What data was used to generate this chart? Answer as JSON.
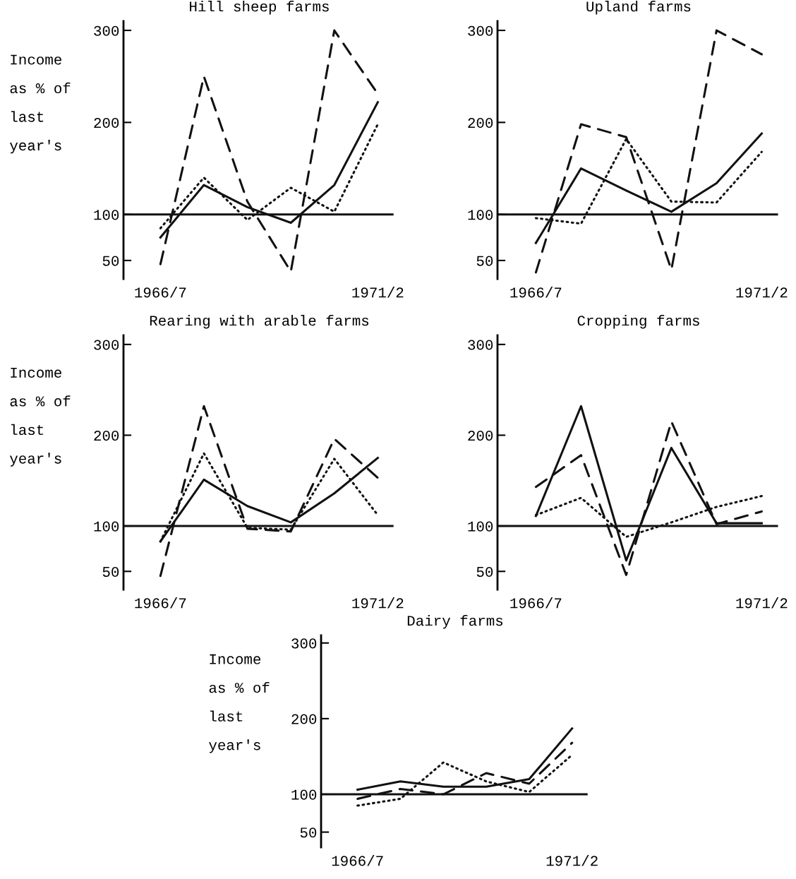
{
  "chart_data": [
    {
      "type": "line",
      "title": "Hill sheep farms",
      "ylabel": "Income\nas % of\nlast\nyear's",
      "categories": [
        "1966/7",
        null,
        null,
        null,
        null,
        "1971/2"
      ],
      "ylim": [
        30,
        310
      ],
      "yticks": [
        50,
        100,
        200,
        300
      ],
      "ref_lines": [
        {
          "axis": "y",
          "value": 100,
          "color": "#111111"
        }
      ],
      "series": [
        {
          "color": "#111111",
          "line_style": "solid",
          "values": [
            75,
            132,
            108,
            91,
            132,
            222
          ]
        },
        {
          "color": "#111111",
          "line_style": "dashed",
          "values": [
            46,
            250,
            114,
            38,
            300,
            231
          ]
        },
        {
          "color": "#111111",
          "line_style": "dotted",
          "values": [
            85,
            140,
            94,
            129,
            103,
            198
          ]
        }
      ]
    },
    {
      "type": "line",
      "title": "Upland farms",
      "categories": [
        "1966/7",
        null,
        null,
        null,
        null,
        "1971/2"
      ],
      "ylim": [
        30,
        310
      ],
      "yticks": [
        50,
        100,
        200,
        300
      ],
      "ref_lines": [
        {
          "axis": "y",
          "value": 100,
          "color": "#111111"
        }
      ],
      "series": [
        {
          "color": "#111111",
          "line_style": "solid",
          "values": [
            69,
            150,
            126,
            103,
            134,
            188
          ]
        },
        {
          "color": "#111111",
          "line_style": "dashed",
          "values": [
            37,
            198,
            184,
            40,
            300,
            274
          ]
        },
        {
          "color": "#111111",
          "line_style": "dotted",
          "values": [
            96,
            90,
            182,
            114,
            113,
            168
          ]
        }
      ]
    },
    {
      "type": "line",
      "title": "Rearing with arable farms",
      "ylabel": "Income\nas % of\nlast\nyear's",
      "categories": [
        "1966/7",
        null,
        null,
        null,
        null,
        "1971/2"
      ],
      "ylim": [
        30,
        310
      ],
      "yticks": [
        50,
        100,
        200,
        300
      ],
      "ref_lines": [
        {
          "axis": "y",
          "value": 100,
          "color": "#111111"
        }
      ],
      "series": [
        {
          "color": "#111111",
          "line_style": "solid",
          "values": [
            83,
            151,
            122,
            104,
            136,
            175
          ]
        },
        {
          "color": "#111111",
          "line_style": "dashed",
          "values": [
            45,
            232,
            97,
            94,
            196,
            153
          ]
        },
        {
          "color": "#111111",
          "line_style": "dotted",
          "values": [
            83,
            180,
            98,
            96,
            174,
            112
          ]
        }
      ]
    },
    {
      "type": "line",
      "title": "Cropping farms",
      "categories": [
        "1966/7",
        null,
        null,
        null,
        null,
        "1971/2"
      ],
      "ylim": [
        30,
        310
      ],
      "yticks": [
        50,
        100,
        200,
        300
      ],
      "ref_lines": [
        {
          "axis": "y",
          "value": 100,
          "color": "#111111"
        }
      ],
      "series": [
        {
          "color": "#111111",
          "line_style": "solid",
          "values": [
            111,
            232,
            62,
            186,
            103,
            103
          ]
        },
        {
          "color": "#111111",
          "line_style": "dashed",
          "values": [
            143,
            178,
            46,
            215,
            102,
            116
          ]
        },
        {
          "color": "#111111",
          "line_style": "dotted",
          "values": [
            112,
            131,
            88,
            104,
            121,
            133
          ]
        }
      ]
    },
    {
      "type": "line",
      "title": "Dairy farms",
      "ylabel": "Income\nas % of\nlast\nyear's",
      "categories": [
        "1966/7",
        null,
        null,
        null,
        null,
        "1971/2"
      ],
      "ylim": [
        30,
        310
      ],
      "yticks": [
        50,
        100,
        200,
        300
      ],
      "ref_lines": [
        {
          "axis": "y",
          "value": 100,
          "color": "#111111"
        }
      ],
      "series": [
        {
          "color": "#111111",
          "line_style": "solid",
          "values": [
            106,
            117,
            110,
            110,
            120,
            187
          ]
        },
        {
          "color": "#111111",
          "line_style": "dashed",
          "values": [
            94,
            107,
            100,
            128,
            114,
            168
          ]
        },
        {
          "color": "#111111",
          "line_style": "dotted",
          "values": [
            85,
            94,
            142,
            117,
            103,
            152
          ]
        }
      ]
    }
  ]
}
